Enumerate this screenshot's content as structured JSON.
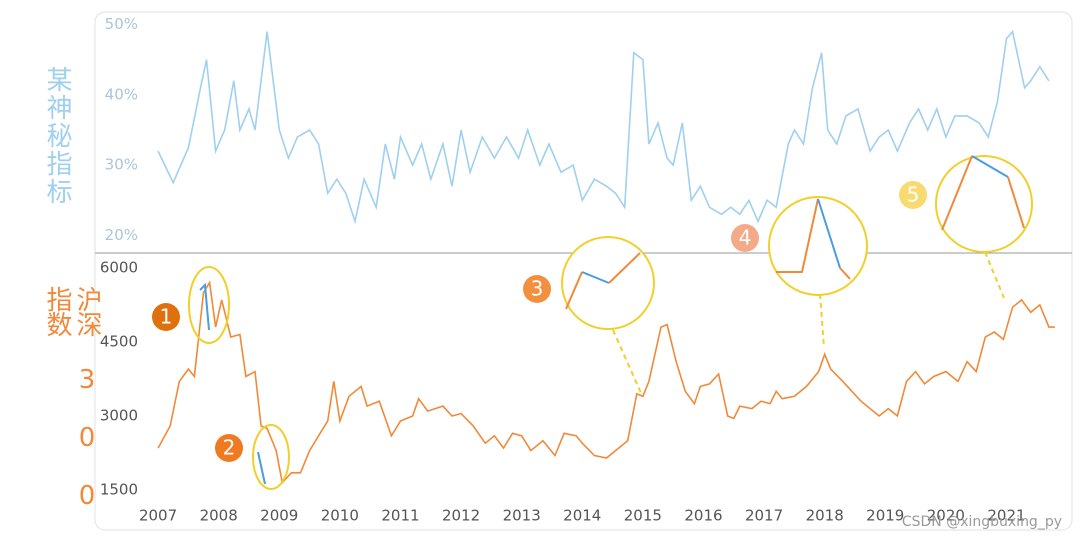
{
  "chart_data": [
    {
      "type": "line",
      "ylabel": "某神秘指标",
      "xlim": [
        2006.9,
        2021.9
      ],
      "ylim": [
        17.5,
        51.5
      ],
      "yticks": [
        {
          "value": 50,
          "label": "50%"
        },
        {
          "value": 40,
          "label": "40%"
        },
        {
          "value": 30,
          "label": "30%"
        },
        {
          "value": 20,
          "label": "20%"
        }
      ],
      "x": [
        2007,
        2007.25,
        2007.5,
        2007.7,
        2007.8,
        2007.95,
        2008.1,
        2008.25,
        2008.35,
        2008.5,
        2008.6,
        2008.8,
        2009.0,
        2009.15,
        2009.3,
        2009.5,
        2009.65,
        2009.8,
        2009.95,
        2010.1,
        2010.25,
        2010.4,
        2010.6,
        2010.75,
        2010.9,
        2011.0,
        2011.2,
        2011.35,
        2011.5,
        2011.7,
        2011.85,
        2012.0,
        2012.15,
        2012.35,
        2012.55,
        2012.75,
        2012.95,
        2013.1,
        2013.3,
        2013.45,
        2013.65,
        2013.85,
        2014.0,
        2014.2,
        2014.4,
        2014.55,
        2014.7,
        2014.85,
        2015.0,
        2015.1,
        2015.25,
        2015.4,
        2015.5,
        2015.65,
        2015.8,
        2015.95,
        2016.1,
        2016.3,
        2016.45,
        2016.6,
        2016.75,
        2016.9,
        2017.05,
        2017.2,
        2017.4,
        2017.5,
        2017.65,
        2017.8,
        2017.95,
        2018.05,
        2018.2,
        2018.35,
        2018.55,
        2018.75,
        2018.9,
        2019.05,
        2019.2,
        2019.4,
        2019.55,
        2019.7,
        2019.85,
        2020.0,
        2020.15,
        2020.35,
        2020.55,
        2020.7,
        2020.85,
        2021.0,
        2021.1,
        2021.3,
        2021.4,
        2021.55,
        2021.7
      ],
      "series": [
        {
          "color": "#9fd0f0",
          "values": [
            32,
            27.5,
            32.5,
            41,
            45,
            32,
            35,
            42,
            35,
            38,
            35,
            49,
            35,
            31,
            34,
            35,
            33,
            26,
            28,
            26,
            22,
            28,
            24,
            33,
            28,
            34,
            30,
            33,
            28,
            33,
            27,
            35,
            29,
            34,
            31,
            34,
            31,
            35,
            30,
            33,
            29,
            30,
            25,
            28,
            27,
            26,
            24,
            46,
            45,
            33,
            36,
            31,
            30,
            36,
            25,
            27,
            24,
            23,
            24,
            23,
            25,
            22,
            25,
            24,
            33,
            35,
            33,
            41,
            46,
            35,
            33,
            37,
            38,
            32,
            34,
            35,
            32,
            36,
            38,
            35,
            38,
            34,
            37,
            37,
            36,
            34,
            39,
            48,
            49,
            41,
            42,
            44,
            42
          ]
        }
      ]
    },
    {
      "type": "line",
      "ylabel": "沪深 3 0 0 指数",
      "xlim": [
        2006.9,
        2021.9
      ],
      "ylim": [
        1300,
        6300
      ],
      "yticks": [
        6000,
        4500,
        3000,
        1500
      ],
      "xticks": [
        2007,
        2008,
        2009,
        2010,
        2011,
        2012,
        2013,
        2014,
        2015,
        2016,
        2017,
        2018,
        2019,
        2020,
        2021
      ],
      "x": [
        2007,
        2007.2,
        2007.35,
        2007.5,
        2007.6,
        2007.75,
        2007.85,
        2007.95,
        2008.05,
        2008.2,
        2008.35,
        2008.45,
        2008.6,
        2008.7,
        2008.8,
        2008.95,
        2009.05,
        2009.2,
        2009.35,
        2009.5,
        2009.65,
        2009.8,
        2009.9,
        2010.0,
        2010.15,
        2010.35,
        2010.45,
        2010.65,
        2010.85,
        2011.0,
        2011.2,
        2011.3,
        2011.45,
        2011.7,
        2011.85,
        2012.0,
        2012.2,
        2012.4,
        2012.55,
        2012.7,
        2012.85,
        2013.0,
        2013.15,
        2013.35,
        2013.55,
        2013.7,
        2013.9,
        2014.0,
        2014.2,
        2014.4,
        2014.6,
        2014.75,
        2014.9,
        2015.0,
        2015.1,
        2015.3,
        2015.4,
        2015.55,
        2015.7,
        2015.85,
        2015.95,
        2016.1,
        2016.25,
        2016.4,
        2016.5,
        2016.6,
        2016.8,
        2016.95,
        2017.1,
        2017.2,
        2017.3,
        2017.5,
        2017.7,
        2017.9,
        2018.0,
        2018.1,
        2018.3,
        2018.45,
        2018.6,
        2018.75,
        2018.9,
        2019.05,
        2019.2,
        2019.35,
        2019.5,
        2019.65,
        2019.8,
        2020.0,
        2020.2,
        2020.35,
        2020.5,
        2020.65,
        2020.8,
        2020.95,
        2021.1,
        2021.25,
        2021.4,
        2021.55,
        2021.7,
        2021.8
      ],
      "series": [
        {
          "color": "#f08a3a",
          "values": [
            2350,
            2800,
            3700,
            3950,
            3800,
            5500,
            5700,
            4800,
            5350,
            4600,
            4650,
            3800,
            3900,
            2800,
            2750,
            2300,
            1650,
            1850,
            1850,
            2300,
            2600,
            2900,
            3700,
            2900,
            3400,
            3600,
            3200,
            3300,
            2600,
            2900,
            3000,
            3350,
            3100,
            3200,
            3000,
            3050,
            2800,
            2450,
            2600,
            2350,
            2650,
            2600,
            2300,
            2500,
            2200,
            2650,
            2600,
            2450,
            2200,
            2150,
            2350,
            2500,
            3450,
            3400,
            3700,
            4800,
            4850,
            4100,
            3500,
            3250,
            3600,
            3650,
            3850,
            3000,
            2950,
            3200,
            3150,
            3300,
            3250,
            3500,
            3350,
            3400,
            3600,
            3900,
            4250,
            3950,
            3700,
            3500,
            3300,
            3150,
            3000,
            3150,
            3000,
            3700,
            3900,
            3650,
            3800,
            3900,
            3700,
            4100,
            3900,
            4600,
            4700,
            4550,
            5200,
            5350,
            5100,
            5250,
            4800,
            4800
          ]
        }
      ],
      "annotations": [
        "1",
        "2",
        "3",
        "4",
        "5"
      ],
      "watermark": "CSDN @xingbuxing_py"
    }
  ]
}
